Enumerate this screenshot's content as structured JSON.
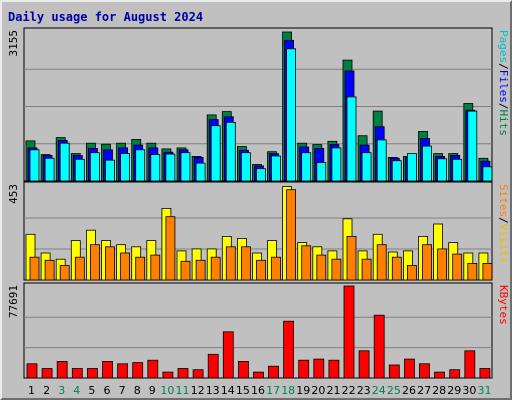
{
  "chart_data": {
    "type": "bar",
    "title": "Daily usage for August 2024",
    "x": [
      "1",
      "2",
      "3",
      "4",
      "5",
      "6",
      "7",
      "8",
      "9",
      "10",
      "11",
      "12",
      "13",
      "14",
      "15",
      "16",
      "17",
      "18",
      "19",
      "20",
      "21",
      "22",
      "23",
      "24",
      "25",
      "26",
      "27",
      "28",
      "29",
      "30",
      "31"
    ],
    "weekend_days": [
      "3",
      "4",
      "10",
      "11",
      "17",
      "18",
      "24",
      "25",
      "31"
    ],
    "panels": [
      {
        "id": "hits",
        "max_label": "3155",
        "ylim": [
          0,
          3155
        ],
        "side_label": [
          "Pages",
          "Files",
          "Hits"
        ],
        "series": [
          {
            "name": "Hits",
            "color": "#008040",
            "values": [
              850,
              560,
              920,
              580,
              800,
              780,
              800,
              880,
              800,
              680,
              700,
              520,
              1400,
              1470,
              730,
              350,
              620,
              3155,
              800,
              770,
              840,
              2560,
              960,
              1480,
              500,
              520,
              1050,
              580,
              580,
              1640,
              480
            ]
          },
          {
            "name": "Files",
            "color": "#0000ff",
            "values": [
              700,
              540,
              860,
              540,
              690,
              660,
              700,
              760,
              700,
              610,
              660,
              500,
              1300,
              1360,
              650,
              320,
              580,
              2980,
              720,
              690,
              770,
              2330,
              760,
              1150,
              480,
              500,
              900,
              520,
              540,
              1500,
              420
            ]
          },
          {
            "name": "Pages",
            "color": "#00ffff",
            "values": [
              660,
              480,
              800,
              460,
              600,
              440,
              580,
              660,
              560,
              570,
              600,
              380,
              1170,
              1240,
              600,
              260,
              530,
              2800,
              600,
              390,
              700,
              1780,
              600,
              870,
              430,
              580,
              740,
              470,
              460,
              1480,
              300
            ]
          }
        ]
      },
      {
        "id": "visits",
        "max_label": "453",
        "ylim": [
          0,
          453
        ],
        "side_label": [
          "Sites",
          "Visits"
        ],
        "series": [
          {
            "name": "Visits",
            "color": "#ffff00",
            "values": [
              220,
              130,
              100,
              190,
              240,
              190,
              170,
              160,
              190,
              345,
              140,
              150,
              150,
              210,
              200,
              130,
              190,
              450,
              180,
              160,
              140,
              295,
              140,
              220,
              135,
              140,
              210,
              270,
              180,
              130,
              130
            ]
          },
          {
            "name": "Sites",
            "color": "#ff8000",
            "values": [
              110,
              95,
              70,
              110,
              170,
              160,
              130,
              110,
              120,
              305,
              90,
              95,
              110,
              160,
              160,
              95,
              110,
              435,
              165,
              120,
              100,
              210,
              100,
              170,
              110,
              70,
              170,
              150,
              125,
              80,
              80
            ]
          }
        ]
      },
      {
        "id": "kbytes",
        "max_label": "77691",
        "ylim": [
          0,
          77691
        ],
        "side_label": [
          "KBytes"
        ],
        "series": [
          {
            "name": "KBytes",
            "color": "#ff0000",
            "values": [
              12000,
              8000,
              14000,
              8000,
              8000,
              14000,
              12000,
              13000,
              15000,
              5000,
              8000,
              7000,
              20000,
              39000,
              14000,
              5000,
              10000,
              48000,
              15000,
              16000,
              15000,
              77691,
              23000,
              53000,
              11000,
              16000,
              12000,
              5000,
              7000,
              23000,
              8000
            ]
          }
        ]
      }
    ]
  }
}
